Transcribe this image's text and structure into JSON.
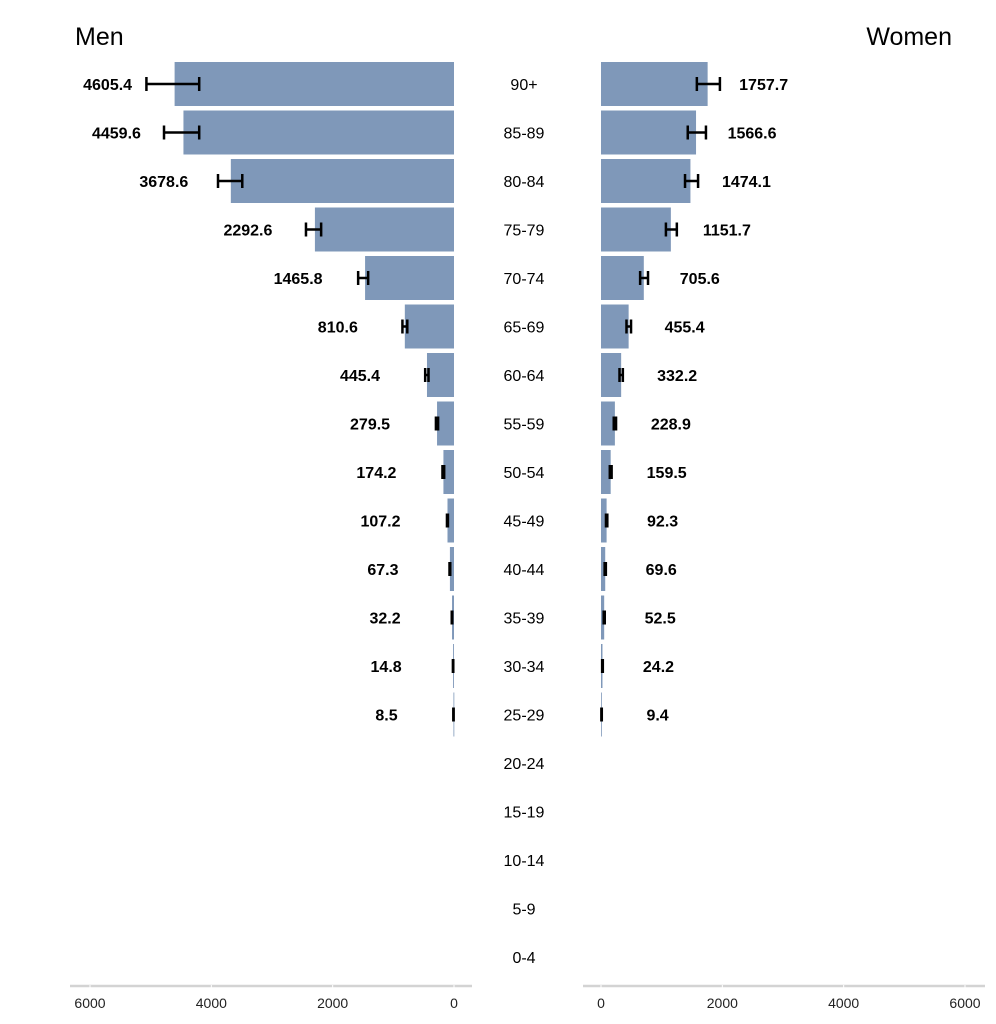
{
  "chart_data": {
    "type": "bar",
    "orientation": "horizontal",
    "layout": "population-pyramid",
    "bar_color": "#7f98b9",
    "errorbar_color": "#000000",
    "axis_color": "#d3d3d3",
    "grid": false,
    "categories": [
      "90+",
      "85-89",
      "80-84",
      "75-79",
      "70-74",
      "65-69",
      "60-64",
      "55-59",
      "50-54",
      "45-49",
      "40-44",
      "35-39",
      "30-34",
      "25-29",
      "20-24",
      "15-19",
      "10-14",
      "5-9",
      "0-4"
    ],
    "panels": [
      {
        "title": "Men",
        "xlim": [
          6000,
          0
        ],
        "ticks": [
          "6000",
          "4000",
          "2000",
          "0"
        ],
        "values": [
          4605.4,
          4459.6,
          3678.6,
          2292.6,
          1465.8,
          810.6,
          445.4,
          279.5,
          174.2,
          107.2,
          67.3,
          32.2,
          14.8,
          8.5,
          null,
          null,
          null,
          null,
          null
        ],
        "labels": [
          "4605.4",
          "4459.6",
          "3678.6",
          "2292.6",
          "1465.8",
          "810.6",
          "445.4",
          "279.5",
          "174.2",
          "107.2",
          "67.3",
          "32.2",
          "14.8",
          "8.5",
          "",
          "",
          "",
          "",
          ""
        ],
        "error_low": [
          4200,
          4200,
          3490,
          2190,
          1415,
          770,
          420,
          262,
          162,
          100,
          62,
          29,
          12,
          6,
          null,
          null,
          null,
          null,
          null
        ],
        "error_high": [
          5070,
          4780,
          3890,
          2440,
          1580,
          850,
          475,
          298,
          190,
          116,
          74,
          37,
          18,
          11,
          null,
          null,
          null,
          null,
          null
        ]
      },
      {
        "title": "Women",
        "xlim": [
          0,
          6000
        ],
        "ticks": [
          "0",
          "2000",
          "4000",
          "6000"
        ],
        "values": [
          1757.7,
          1566.6,
          1474.1,
          1151.7,
          705.6,
          455.4,
          332.2,
          228.9,
          159.5,
          92.3,
          69.6,
          52.5,
          24.2,
          9.4,
          null,
          null,
          null,
          null,
          null
        ],
        "labels": [
          "1757.7",
          "1566.6",
          "1474.1",
          "1151.7",
          "705.6",
          "455.4",
          "332.2",
          "228.9",
          "159.5",
          "92.3",
          "69.6",
          "52.5",
          "24.2",
          "9.4",
          "",
          "",
          "",
          "",
          ""
        ],
        "error_low": [
          1580,
          1430,
          1385,
          1070,
          645,
          420,
          305,
          210,
          145,
          82,
          60,
          44,
          19,
          6,
          null,
          null,
          null,
          null,
          null
        ],
        "error_high": [
          1960,
          1730,
          1600,
          1250,
          775,
          495,
          360,
          248,
          175,
          104,
          80,
          62,
          30,
          13,
          null,
          null,
          null,
          null,
          null
        ]
      }
    ]
  }
}
